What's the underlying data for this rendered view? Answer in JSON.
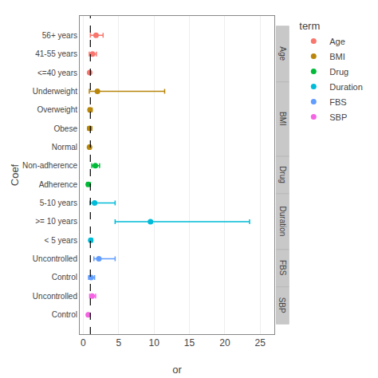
{
  "chart_data": {
    "type": "scatter",
    "xlabel": "or",
    "ylabel": "Coef",
    "legend_title": "term",
    "legend": "right",
    "grid": true,
    "xlim": [
      -0.5,
      27
    ],
    "xticks": [
      0,
      5,
      10,
      15,
      20,
      25
    ],
    "vline": 1.0,
    "categories": [
      "56+ years",
      "41-55 years",
      "<=40 years",
      "Underweight",
      "Overweight",
      "Obese",
      "Normal",
      "Non-adherence",
      "Adherence",
      "5-10 years",
      ">= 10 years",
      "< 5 years",
      "Uncontrolled",
      "Control",
      "Uncontrolled",
      "Control"
    ],
    "series": [
      {
        "name": "Age",
        "color": "#F8766D",
        "values": [
          1.8,
          1.3,
          0.9,
          null,
          null,
          null,
          null,
          null,
          null,
          null,
          null,
          null,
          null,
          null,
          null,
          null
        ],
        "lo": [
          1.0,
          0.85,
          0.9,
          null,
          null,
          null,
          null,
          null,
          null,
          null,
          null,
          null,
          null,
          null,
          null,
          null
        ],
        "hi": [
          2.8,
          1.85,
          0.9,
          null,
          null,
          null,
          null,
          null,
          null,
          null,
          null,
          null,
          null,
          null,
          null,
          null
        ]
      },
      {
        "name": "BMI",
        "color": "#B8860B",
        "values": [
          null,
          null,
          null,
          2.0,
          0.95,
          0.9,
          0.88,
          null,
          null,
          null,
          null,
          null,
          null,
          null,
          null,
          null
        ],
        "lo": [
          null,
          null,
          null,
          0.85,
          0.75,
          0.65,
          0.75,
          null,
          null,
          null,
          null,
          null,
          null,
          null,
          null,
          null
        ],
        "hi": [
          null,
          null,
          null,
          11.5,
          1.25,
          1.2,
          1.05,
          null,
          null,
          null,
          null,
          null,
          null,
          null,
          null,
          null
        ]
      },
      {
        "name": "Drug",
        "color": "#00BA38",
        "values": [
          null,
          null,
          null,
          null,
          null,
          null,
          null,
          1.7,
          0.7,
          null,
          null,
          null,
          null,
          null,
          null,
          null
        ],
        "lo": [
          null,
          null,
          null,
          null,
          null,
          null,
          null,
          1.2,
          0.5,
          null,
          null,
          null,
          null,
          null,
          null,
          null
        ],
        "hi": [
          null,
          null,
          null,
          null,
          null,
          null,
          null,
          2.3,
          1.0,
          null,
          null,
          null,
          null,
          null,
          null,
          null
        ]
      },
      {
        "name": "Duration",
        "color": "#00BCD8",
        "values": [
          null,
          null,
          null,
          null,
          null,
          null,
          null,
          null,
          null,
          1.6,
          9.5,
          1.05,
          null,
          null,
          null,
          null
        ],
        "lo": [
          null,
          null,
          null,
          null,
          null,
          null,
          null,
          null,
          null,
          0.95,
          4.5,
          0.9,
          null,
          null,
          null,
          null
        ],
        "hi": [
          null,
          null,
          null,
          null,
          null,
          null,
          null,
          null,
          null,
          4.5,
          23.5,
          1.3,
          null,
          null,
          null,
          null
        ]
      },
      {
        "name": "FBS",
        "color": "#619CFF",
        "values": [
          null,
          null,
          null,
          null,
          null,
          null,
          null,
          null,
          null,
          null,
          null,
          null,
          2.2,
          1.1,
          null,
          null
        ],
        "lo": [
          null,
          null,
          null,
          null,
          null,
          null,
          null,
          null,
          null,
          null,
          null,
          null,
          1.5,
          0.75,
          null,
          null
        ],
        "hi": [
          null,
          null,
          null,
          null,
          null,
          null,
          null,
          null,
          null,
          null,
          null,
          null,
          4.5,
          1.6,
          null,
          null
        ]
      },
      {
        "name": "SBP",
        "color": "#F564E3",
        "values": [
          null,
          null,
          null,
          null,
          null,
          null,
          null,
          null,
          null,
          null,
          null,
          null,
          null,
          null,
          1.25,
          0.7
        ],
        "lo": [
          null,
          null,
          null,
          null,
          null,
          null,
          null,
          null,
          null,
          null,
          null,
          null,
          null,
          null,
          0.9,
          0.7
        ],
        "hi": [
          null,
          null,
          null,
          null,
          null,
          null,
          null,
          null,
          null,
          null,
          null,
          null,
          null,
          null,
          1.75,
          0.7
        ]
      }
    ]
  }
}
